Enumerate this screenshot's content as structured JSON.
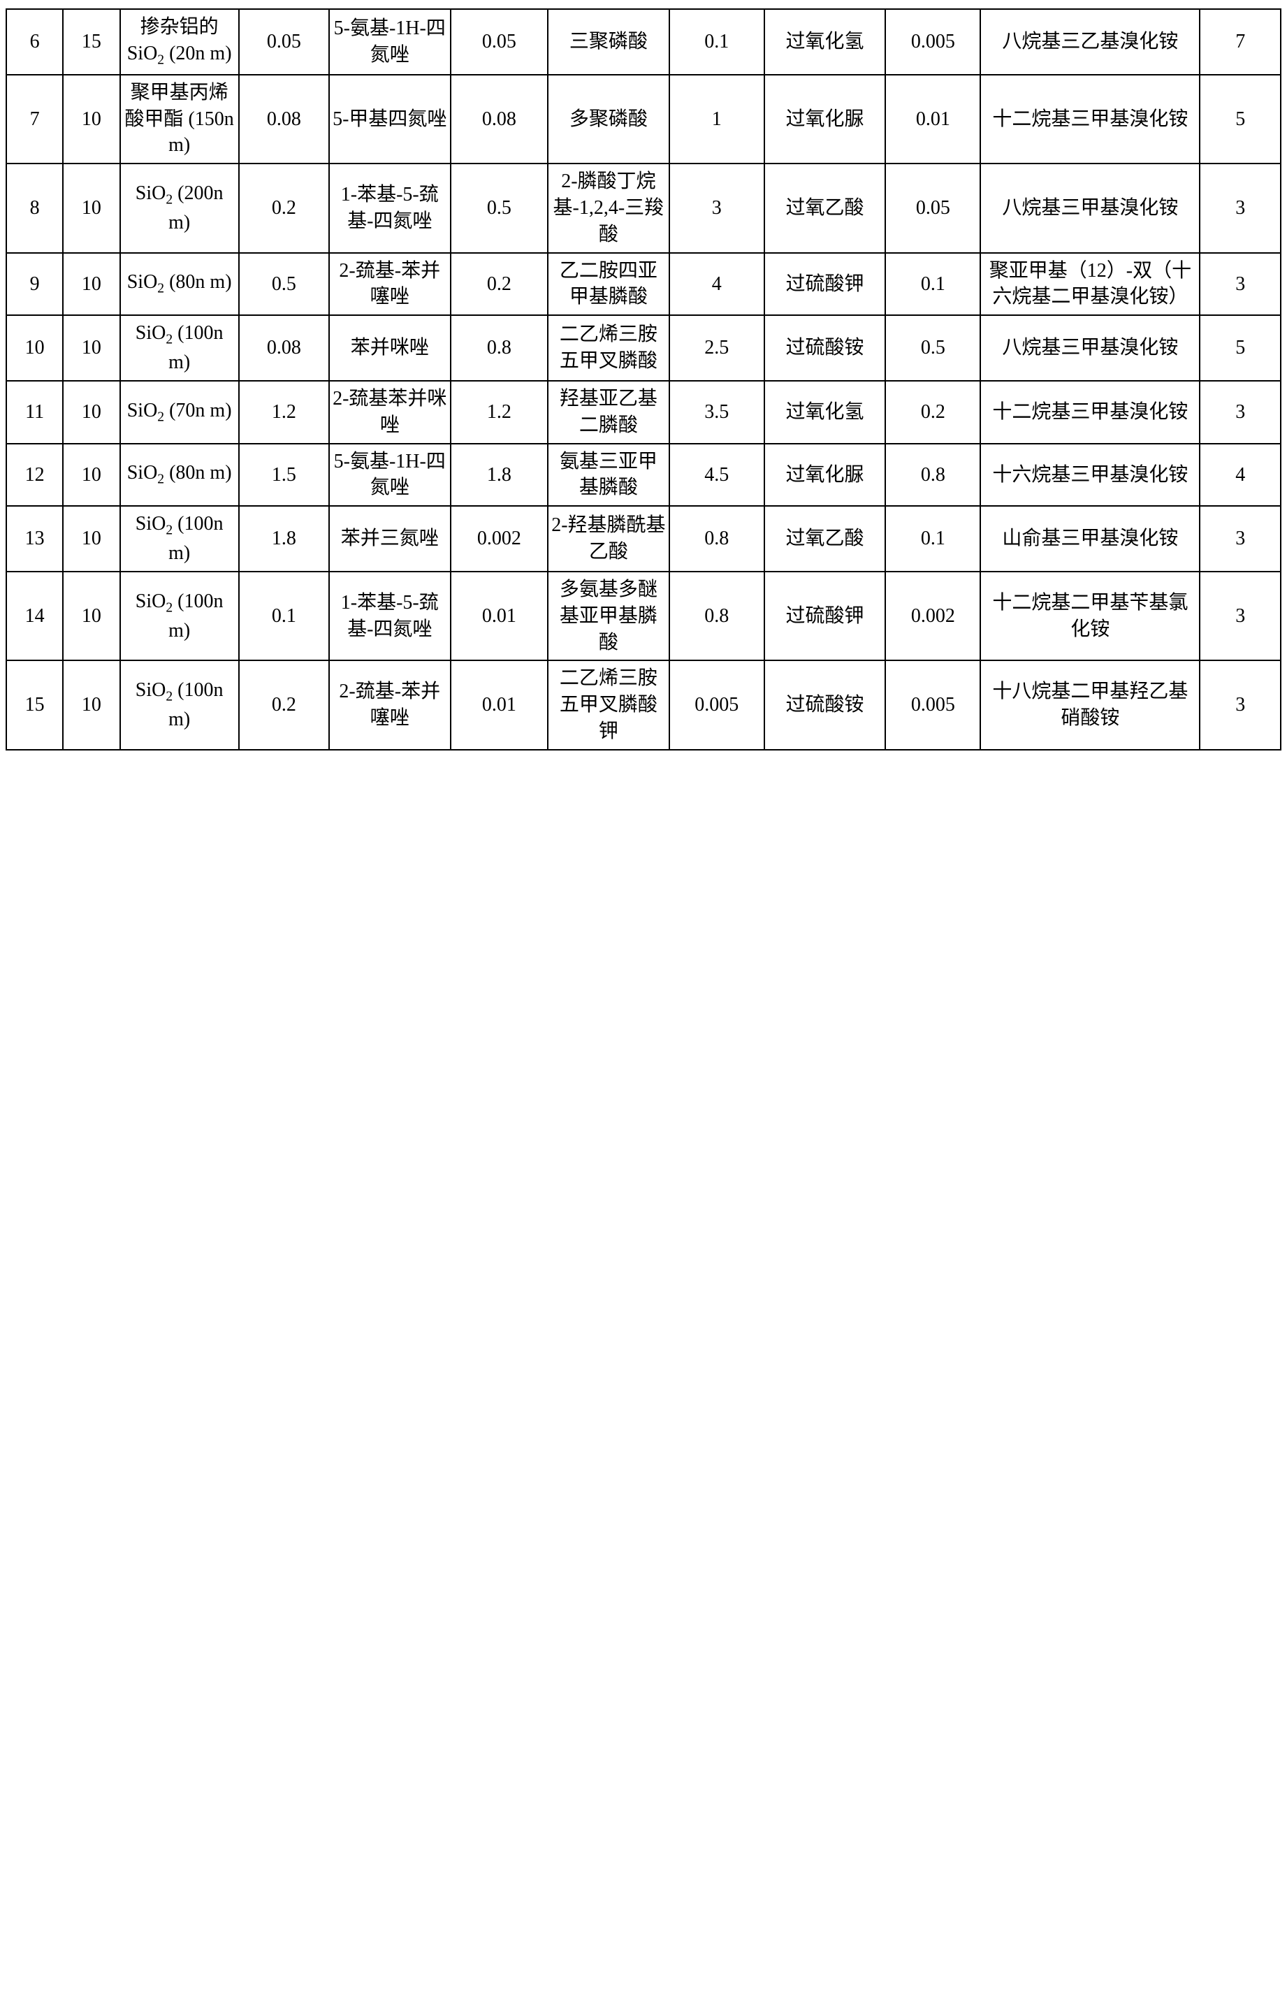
{
  "rows": [
    {
      "id": "6",
      "a": "15",
      "b_html": "掺杂铝的SiO<span class=\"sub\">2</span> (20n m)",
      "c": "0.05",
      "d": "5-氨基-1H-四氮唑",
      "e": "0.05",
      "f": "三聚磷酸",
      "g": "0.1",
      "h": "过氧化氢",
      "i": "0.005",
      "j": "八烷基三乙基溴化铵",
      "k": "7"
    },
    {
      "id": "7",
      "a": "10",
      "b_html": "聚甲基丙烯酸甲酯 (150n m)",
      "c": "0.08",
      "d": "5-甲基四氮唑",
      "e": "0.08",
      "f": "多聚磷酸",
      "g": "1",
      "h": "过氧化脲",
      "i": "0.01",
      "j": "十二烷基三甲基溴化铵",
      "k": "5"
    },
    {
      "id": "8",
      "a": "10",
      "b_html": "SiO<span class=\"sub\">2</span> (200n m)",
      "c": "0.2",
      "d": "1-苯基-5-巯基-四氮唑",
      "e": "0.5",
      "f": "2-膦酸丁烷基-1,2,4-三羧酸",
      "g": "3",
      "h": "过氧乙酸",
      "i": "0.05",
      "j": "八烷基三甲基溴化铵",
      "k": "3"
    },
    {
      "id": "9",
      "a": "10",
      "b_html": "SiO<span class=\"sub\">2</span> (80n m)",
      "c": "0.5",
      "d": "2-巯基-苯并噻唑",
      "e": "0.2",
      "f": "乙二胺四亚甲基膦酸",
      "g": "4",
      "h": "过硫酸钾",
      "i": "0.1",
      "j": "聚亚甲基（12）-双（十六烷基二甲基溴化铵）",
      "k": "3"
    },
    {
      "id": "10",
      "a": "10",
      "b_html": "SiO<span class=\"sub\">2</span> (100n m)",
      "c": "0.08",
      "d": "苯并咪唑",
      "e": "0.8",
      "f": "二乙烯三胺五甲叉膦酸",
      "g": "2.5",
      "h": "过硫酸铵",
      "i": "0.5",
      "j": "八烷基三甲基溴化铵",
      "k": "5"
    },
    {
      "id": "11",
      "a": "10",
      "b_html": "SiO<span class=\"sub\">2</span> (70n m)",
      "c": "1.2",
      "d": "2-巯基苯并咪唑",
      "e": "1.2",
      "f": "羟基亚乙基二膦酸",
      "g": "3.5",
      "h": "过氧化氢",
      "i": "0.2",
      "j": "十二烷基三甲基溴化铵",
      "k": "3"
    },
    {
      "id": "12",
      "a": "10",
      "b_html": "SiO<span class=\"sub\">2</span> (80n m)",
      "c": "1.5",
      "d": "5-氨基-1H-四氮唑",
      "e": "1.8",
      "f": "氨基三亚甲基膦酸",
      "g": "4.5",
      "h": "过氧化脲",
      "i": "0.8",
      "j": "十六烷基三甲基溴化铵",
      "k": "4"
    },
    {
      "id": "13",
      "a": "10",
      "b_html": "SiO<span class=\"sub\">2</span> (100n m)",
      "c": "1.8",
      "d": "苯并三氮唑",
      "e": "0.002",
      "f": "2-羟基膦酰基乙酸",
      "g": "0.8",
      "h": "过氧乙酸",
      "i": "0.1",
      "j": "山俞基三甲基溴化铵",
      "k": "3"
    },
    {
      "id": "14",
      "a": "10",
      "b_html": "SiO<span class=\"sub\">2</span> (100n m)",
      "c": "0.1",
      "d": "1-苯基-5-巯基-四氮唑",
      "e": "0.01",
      "f": "多氨基多醚基亚甲基膦酸",
      "g": "0.8",
      "h": "过硫酸钾",
      "i": "0.002",
      "j": "十二烷基二甲基苄基氯化铵",
      "k": "3"
    },
    {
      "id": "15",
      "a": "10",
      "b_html": "SiO<span class=\"sub\">2</span> (100n m)",
      "c": "0.2",
      "d": "2-巯基-苯并噻唑",
      "e": "0.01",
      "f": "二乙烯三胺五甲叉膦酸钾",
      "g": "0.005",
      "h": "过硫酸铵",
      "i": "0.005",
      "j": "十八烷基二甲基羟乙基硝酸铵",
      "k": "3"
    }
  ]
}
